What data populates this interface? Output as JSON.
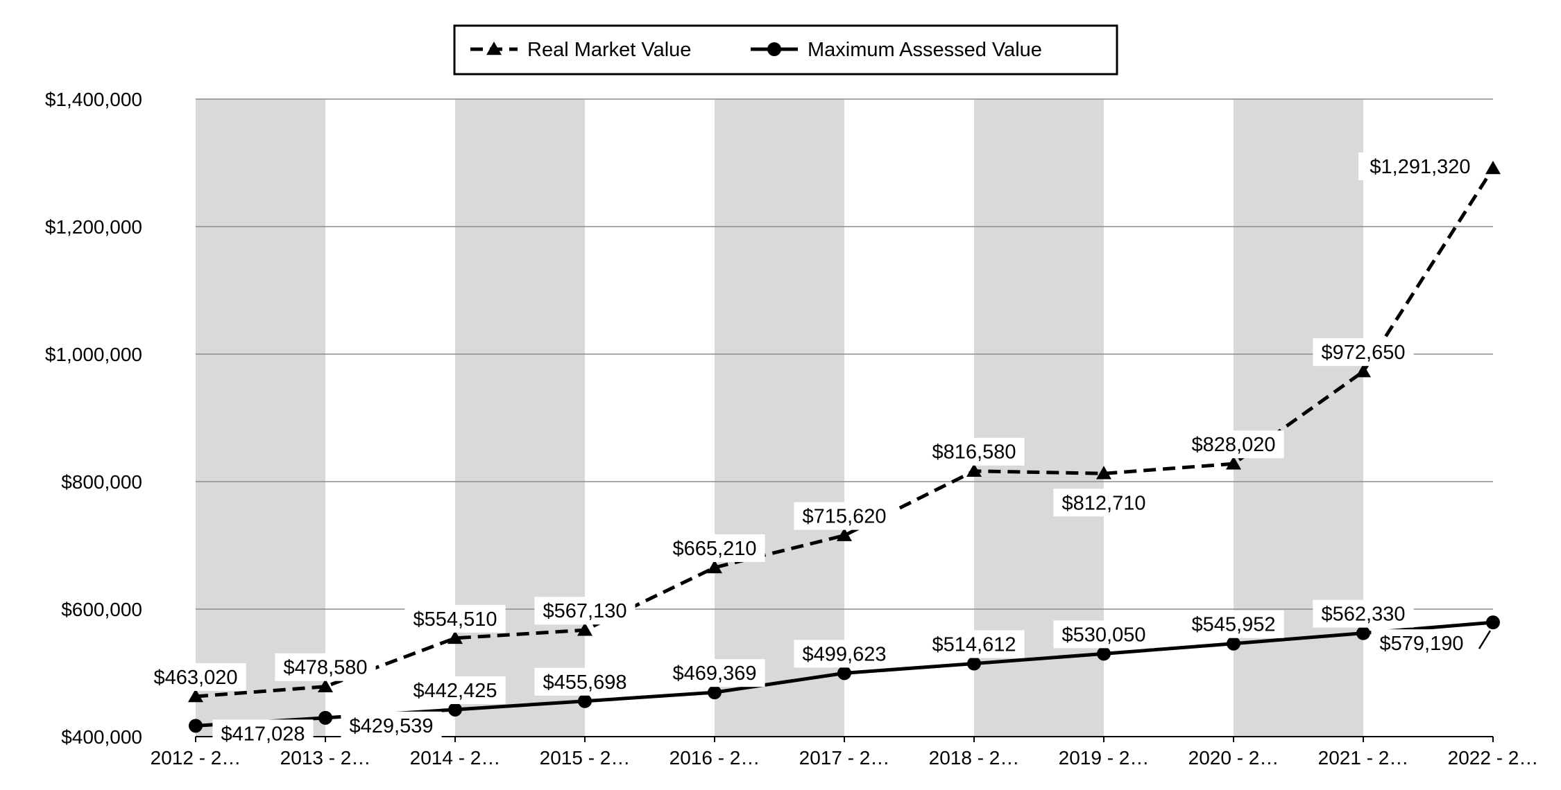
{
  "chart_data": {
    "type": "line",
    "title": "",
    "xlabel": "",
    "ylabel": "",
    "ylim": [
      400000,
      1400000
    ],
    "yticks": [
      400000,
      600000,
      800000,
      1000000,
      1200000,
      1400000
    ],
    "ytick_labels": [
      "$400,000",
      "$600,000",
      "$800,000",
      "$1,000,000",
      "$1,200,000",
      "$1,400,000"
    ],
    "categories": [
      "2012 - 2…",
      "2013 - 2…",
      "2014 - 2…",
      "2015 - 2…",
      "2016 - 2…",
      "2017 - 2…",
      "2018 - 2…",
      "2019 - 2…",
      "2020 - 2…",
      "2021 - 2…",
      "2022 - 2…"
    ],
    "grid": true,
    "legend_position": "top-center",
    "band_color": "#d9d9d9",
    "series": [
      {
        "name": "Real Market Value",
        "marker": "triangle",
        "line_style": "dashed",
        "color": "#000000",
        "values": [
          463020,
          478580,
          554510,
          567130,
          665210,
          715620,
          816580,
          812710,
          828020,
          972650,
          1291320
        ],
        "labels": [
          "$463,020",
          "$478,580",
          "$554,510",
          "$567,130",
          "$665,210",
          "$715,620",
          "$816,580",
          "$812,710",
          "$828,020",
          "$972,650",
          "$1,291,320"
        ]
      },
      {
        "name": "Maximum Assessed Value",
        "marker": "circle",
        "line_style": "solid",
        "color": "#000000",
        "values": [
          417028,
          429539,
          442425,
          455698,
          469369,
          499623,
          514612,
          530050,
          545952,
          562330,
          579190
        ],
        "labels": [
          "$417,028",
          "$429,539",
          "$442,425",
          "$455,698",
          "$469,369",
          "$499,623",
          "$514,612",
          "$530,050",
          "$545,952",
          "$562,330",
          "$579,190"
        ]
      }
    ]
  }
}
